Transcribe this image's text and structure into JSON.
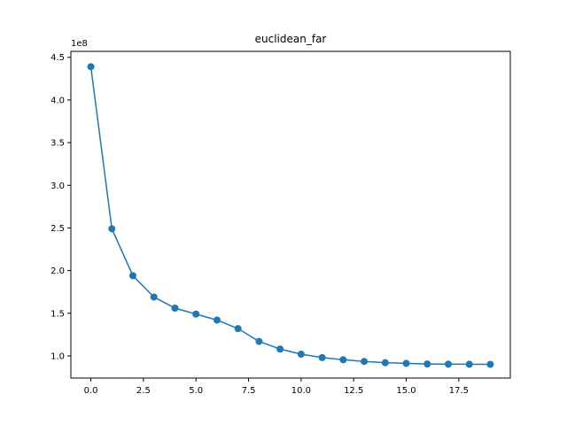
{
  "chart_data": {
    "type": "line",
    "title": "euclidean_far",
    "xlabel": "",
    "ylabel": "",
    "y_offset_label": "1e8",
    "x": [
      0,
      1,
      2,
      3,
      4,
      5,
      6,
      7,
      8,
      9,
      10,
      11,
      12,
      13,
      14,
      15,
      16,
      17,
      18,
      19
    ],
    "series": [
      {
        "values": [
          4.39,
          2.49,
          1.94,
          1.69,
          1.56,
          1.49,
          1.42,
          1.32,
          1.17,
          1.08,
          1.02,
          0.98,
          0.955,
          0.935,
          0.92,
          0.912,
          0.905,
          0.903,
          0.902,
          0.901
        ],
        "color": "#1f77b4",
        "marker": "circle"
      }
    ],
    "xlim": [
      -0.95,
      19.95
    ],
    "ylim": [
      0.74,
      4.57
    ],
    "xticks": [
      0,
      2.5,
      5,
      7.5,
      10,
      12.5,
      15,
      17.5
    ],
    "xtick_labels": [
      "0.0",
      "2.5",
      "5.0",
      "7.5",
      "10.0",
      "12.5",
      "15.0",
      "17.5"
    ],
    "yticks": [
      1.0,
      1.5,
      2.0,
      2.5,
      3.0,
      3.5,
      4.0,
      4.5
    ],
    "ytick_labels": [
      "1.0",
      "1.5",
      "2.0",
      "2.5",
      "3.0",
      "3.5",
      "4.0",
      "4.5"
    ],
    "grid": false,
    "legend": "none"
  }
}
